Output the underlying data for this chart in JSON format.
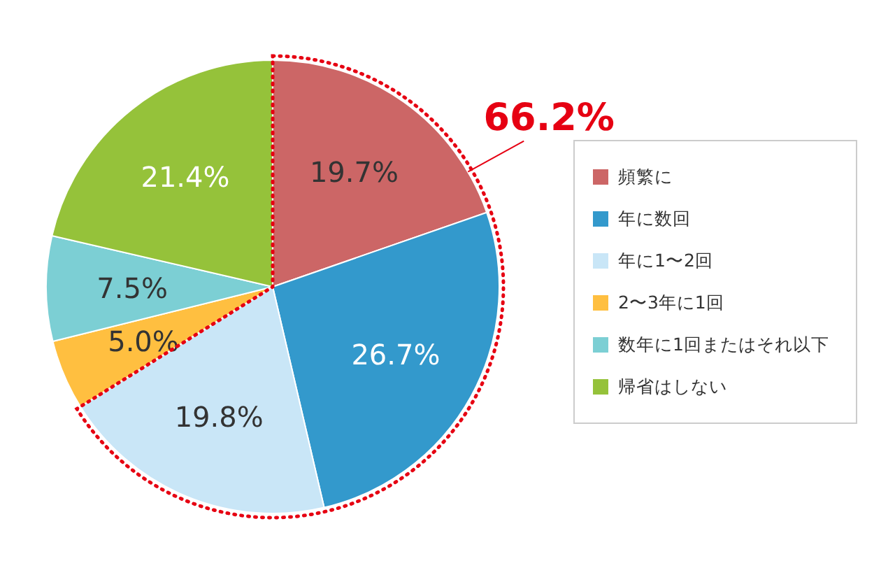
{
  "chart_data": {
    "type": "pie",
    "categories": [
      "頻繁に",
      "年に数回",
      "年に1〜2回",
      "2〜3年に1回",
      "数年に1回またはそれ以下",
      "帰省はしない"
    ],
    "values": [
      19.7,
      26.7,
      19.8,
      5.0,
      7.5,
      21.4
    ],
    "value_labels": [
      "19.7%",
      "26.7%",
      "19.8%",
      "5.0%",
      "7.5%",
      "21.4%"
    ],
    "colors": [
      "#cc6666",
      "#3399cc",
      "#c9e6f7",
      "#ffbf40",
      "#7ccfd4",
      "#95c23a"
    ],
    "annotations": [
      "66.2%"
    ],
    "legend": "right"
  }
}
